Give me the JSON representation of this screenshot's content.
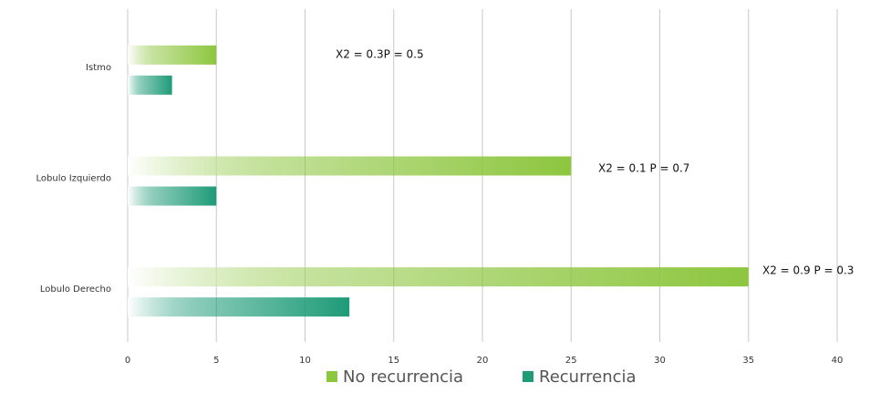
{
  "chart_data": {
    "type": "bar",
    "orientation": "horizontal",
    "categories": [
      "Istmo",
      "Lobulo Izquierdo",
      "Lobulo Derecho"
    ],
    "series": [
      {
        "name": "No recurrencia",
        "color": "#8dc63f",
        "values": [
          5,
          25,
          35
        ]
      },
      {
        "name": "Recurrencia",
        "color": "#1e9b78",
        "values": [
          2.5,
          5,
          12.5
        ]
      }
    ],
    "annotations": [
      "X2 = 0.3P = 0.5",
      "X2 = 0.1 P = 0.7",
      "X2 = 0.9 P = 0.3"
    ],
    "xlim": [
      0,
      40
    ],
    "xticks": [
      0,
      5,
      10,
      15,
      20,
      25,
      30,
      35,
      40
    ],
    "grid": true,
    "legend": "bottom"
  }
}
